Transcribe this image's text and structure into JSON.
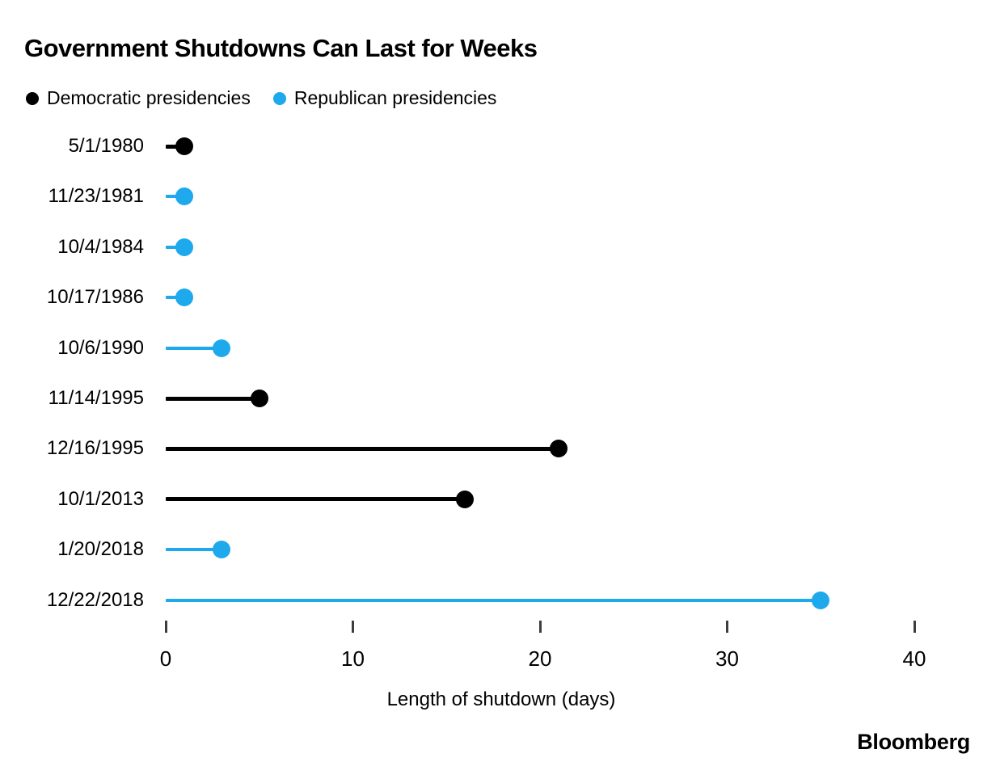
{
  "chart_data": {
    "type": "bar",
    "subtype": "horizontal-lollipop",
    "title": "Government Shutdowns Can Last for Weeks",
    "xlabel": "Length of shutdown (days)",
    "xlim": [
      0,
      40
    ],
    "xticks": [
      0,
      10,
      20,
      30,
      40
    ],
    "grid": false,
    "legend_position": "top-left",
    "legend": [
      {
        "label": "Democratic presidencies",
        "color": "#000000"
      },
      {
        "label": "Republican presidencies",
        "color": "#1DA9EC"
      }
    ],
    "categories": [
      "5/1/1980",
      "11/23/1981",
      "10/4/1984",
      "10/17/1986",
      "10/6/1990",
      "11/14/1995",
      "12/16/1995",
      "10/1/2013",
      "1/20/2018",
      "12/22/2018"
    ],
    "points": [
      {
        "date": "5/1/1980",
        "days": 1,
        "party": "Democratic",
        "color": "#000000"
      },
      {
        "date": "11/23/1981",
        "days": 1,
        "party": "Republican",
        "color": "#1DA9EC"
      },
      {
        "date": "10/4/1984",
        "days": 1,
        "party": "Republican",
        "color": "#1DA9EC"
      },
      {
        "date": "10/17/1986",
        "days": 1,
        "party": "Republican",
        "color": "#1DA9EC"
      },
      {
        "date": "10/6/1990",
        "days": 3,
        "party": "Republican",
        "color": "#1DA9EC"
      },
      {
        "date": "11/14/1995",
        "days": 5,
        "party": "Democratic",
        "color": "#000000"
      },
      {
        "date": "12/16/1995",
        "days": 21,
        "party": "Democratic",
        "color": "#000000"
      },
      {
        "date": "10/1/2013",
        "days": 16,
        "party": "Democratic",
        "color": "#000000"
      },
      {
        "date": "1/20/2018",
        "days": 3,
        "party": "Republican",
        "color": "#1DA9EC"
      },
      {
        "date": "12/22/2018",
        "days": 35,
        "party": "Republican",
        "color": "#1DA9EC"
      }
    ]
  },
  "branding": {
    "logo_text": "Bloomberg"
  }
}
